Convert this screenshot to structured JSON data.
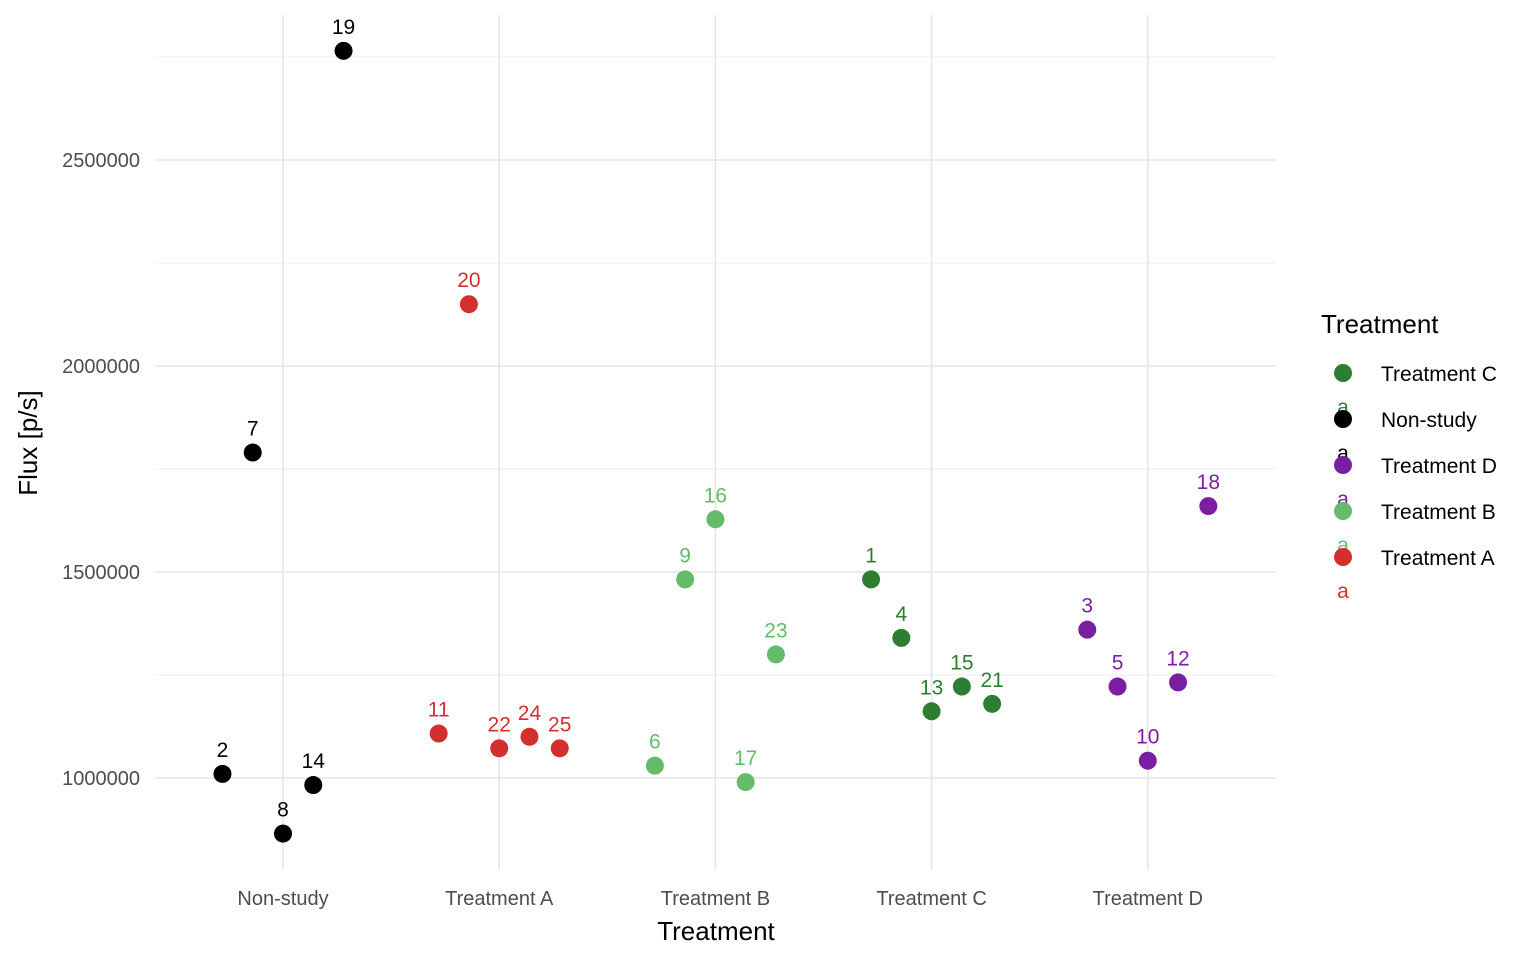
{
  "chart_data": {
    "type": "scatter",
    "xlabel": "Treatment",
    "ylabel": "Flux [p/s]",
    "categories": [
      "Non-study",
      "Treatment A",
      "Treatment B",
      "Treatment C",
      "Treatment D"
    ],
    "yticks": [
      1000000,
      1500000,
      2000000,
      2500000
    ],
    "ytick_labels": [
      "1000000",
      "1500000",
      "2000000",
      "2500000"
    ],
    "ylim": [
      770000,
      2850000
    ],
    "grid": true,
    "legend": {
      "title": "Treatment",
      "position": "right",
      "entries": [
        {
          "label": "Treatment C",
          "color": "#2e7d32",
          "key_text": "a"
        },
        {
          "label": "Non-study",
          "color": "#000000",
          "key_text": "a"
        },
        {
          "label": "Treatment D",
          "color": "#7b1fa2",
          "key_text": "a"
        },
        {
          "label": "Treatment B",
          "color": "#66bb6a",
          "key_text": "a"
        },
        {
          "label": "Treatment A",
          "color": "#d32f2f",
          "key_text": "a"
        }
      ]
    },
    "series": [
      {
        "name": "Non-study",
        "color": "#000000",
        "points": [
          {
            "label": "2",
            "x": -0.28,
            "y": 1010000
          },
          {
            "label": "7",
            "x": -0.14,
            "y": 1790000
          },
          {
            "label": "8",
            "x": 0.0,
            "y": 865000
          },
          {
            "label": "14",
            "x": 0.14,
            "y": 983000
          },
          {
            "label": "19",
            "x": 0.28,
            "y": 2765000
          }
        ]
      },
      {
        "name": "Treatment A",
        "color": "#d32f2f",
        "points": [
          {
            "label": "11",
            "x": 0.72,
            "y": 1108000
          },
          {
            "label": "20",
            "x": 0.86,
            "y": 2150000
          },
          {
            "label": "22",
            "x": 1.0,
            "y": 1072000
          },
          {
            "label": "24",
            "x": 1.14,
            "y": 1100000
          },
          {
            "label": "25",
            "x": 1.28,
            "y": 1072000
          }
        ]
      },
      {
        "name": "Treatment B",
        "color": "#66bb6a",
        "points": [
          {
            "label": "6",
            "x": 1.72,
            "y": 1030000
          },
          {
            "label": "9",
            "x": 1.86,
            "y": 1482000
          },
          {
            "label": "16",
            "x": 2.0,
            "y": 1628000
          },
          {
            "label": "17",
            "x": 2.14,
            "y": 990000
          },
          {
            "label": "23",
            "x": 2.28,
            "y": 1300000
          }
        ]
      },
      {
        "name": "Treatment C",
        "color": "#2e7d32",
        "points": [
          {
            "label": "1",
            "x": 2.72,
            "y": 1482000
          },
          {
            "label": "4",
            "x": 2.86,
            "y": 1340000
          },
          {
            "label": "13",
            "x": 3.0,
            "y": 1162000
          },
          {
            "label": "15",
            "x": 3.14,
            "y": 1222000
          },
          {
            "label": "21",
            "x": 3.28,
            "y": 1180000
          }
        ]
      },
      {
        "name": "Treatment D",
        "color": "#7b1fa2",
        "points": [
          {
            "label": "3",
            "x": 3.72,
            "y": 1360000
          },
          {
            "label": "5",
            "x": 3.86,
            "y": 1222000
          },
          {
            "label": "10",
            "x": 4.0,
            "y": 1042000
          },
          {
            "label": "12",
            "x": 4.14,
            "y": 1232000
          },
          {
            "label": "18",
            "x": 4.28,
            "y": 1660000
          }
        ]
      }
    ]
  }
}
